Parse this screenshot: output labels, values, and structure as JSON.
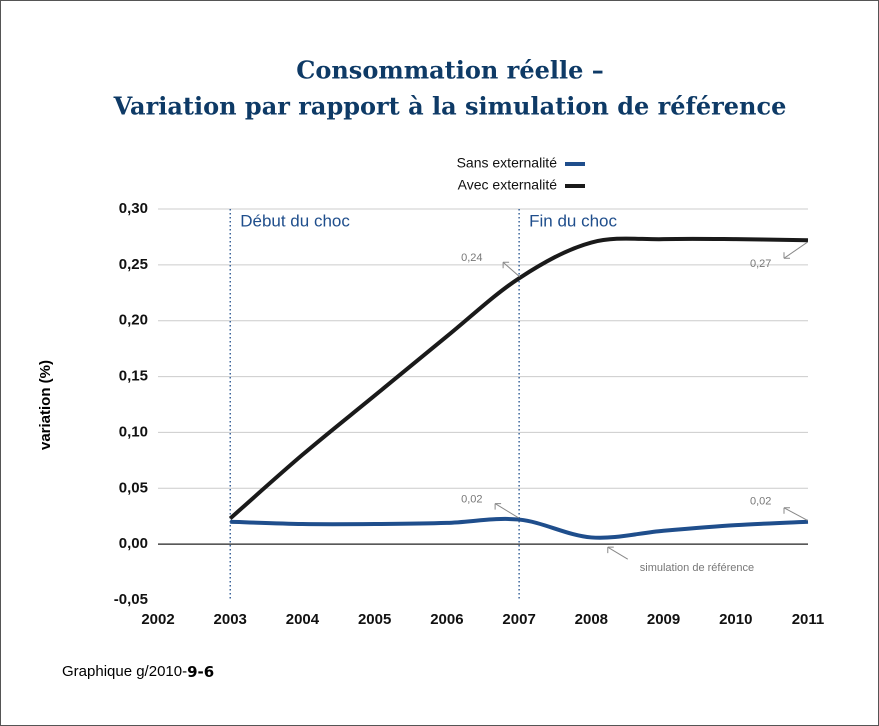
{
  "chart_data": {
    "type": "line",
    "title": [
      "Consommation réelle –",
      "Variation par rapport à la simulation de référence"
    ],
    "ylabel": "variation (%)",
    "x": [
      2003,
      2004,
      2005,
      2006,
      2007,
      2008,
      2009,
      2010,
      2011
    ],
    "series": [
      {
        "name": "Sans externalité",
        "color": "#1f4e8c",
        "values": [
          0.02,
          0.018,
          0.018,
          0.019,
          0.022,
          0.006,
          0.012,
          0.017,
          0.02
        ]
      },
      {
        "name": "Avec externalité",
        "color": "#1a1a1a",
        "values": [
          0.023,
          0.08,
          0.133,
          0.186,
          0.238,
          0.27,
          0.273,
          0.273,
          0.272
        ]
      }
    ],
    "xlim": [
      2002,
      2011
    ],
    "xticks": [
      2002,
      2003,
      2004,
      2005,
      2006,
      2007,
      2008,
      2009,
      2010,
      2011
    ],
    "ylim": [
      -0.05,
      0.3
    ],
    "yticks": [
      {
        "value": -0.05,
        "label": "-0,05"
      },
      {
        "value": 0,
        "label": "0,00"
      },
      {
        "value": 0.05,
        "label": "0,05"
      },
      {
        "value": 0.1,
        "label": "0,10"
      },
      {
        "value": 0.15,
        "label": "0,15"
      },
      {
        "value": 0.2,
        "label": "0,20"
      },
      {
        "value": 0.25,
        "label": "0,25"
      },
      {
        "value": 0.3,
        "label": "0,30"
      }
    ],
    "grid": true,
    "shock_lines": [
      {
        "x": 2003,
        "label": "Début du choc"
      },
      {
        "x": 2007,
        "label": "Fin du choc"
      }
    ],
    "annotations": [
      "0,24",
      "0,27",
      "0,02",
      "0,02",
      "simulation de référence"
    ],
    "footer": {
      "prefix": "Graphique g/2010-",
      "number": "9-6"
    }
  }
}
